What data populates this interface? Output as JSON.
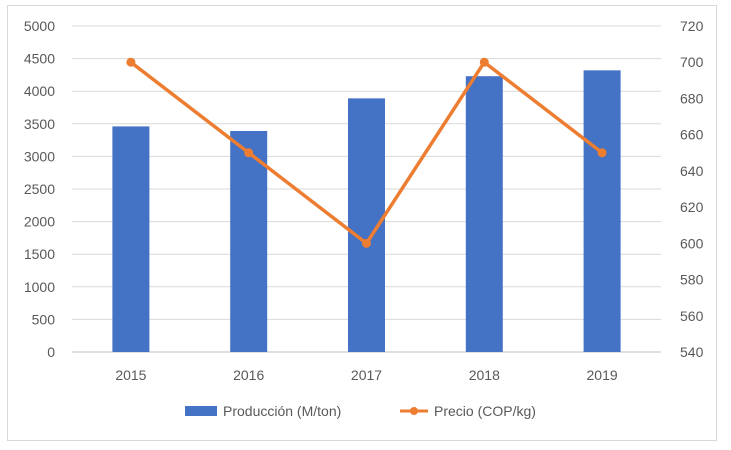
{
  "chart_data": {
    "type": "bar",
    "categories": [
      "2015",
      "2016",
      "2017",
      "2018",
      "2019"
    ],
    "series": [
      {
        "name": "Producción (M/ton)",
        "type": "bar",
        "axis": "left",
        "color": "#4472c4",
        "values": [
          3460,
          3390,
          3890,
          4230,
          4320
        ]
      },
      {
        "name": "Precio (COP/kg)",
        "type": "line",
        "axis": "right",
        "color": "#ed7d31",
        "values": [
          700,
          650,
          600,
          700,
          650
        ]
      }
    ],
    "y_left": {
      "min": 0,
      "max": 5000,
      "step": 500
    },
    "y_right": {
      "min": 540,
      "max": 720,
      "step": 20
    },
    "grid": true,
    "legend_position": "bottom",
    "title": "",
    "xlabel": "",
    "ylabel": ""
  }
}
